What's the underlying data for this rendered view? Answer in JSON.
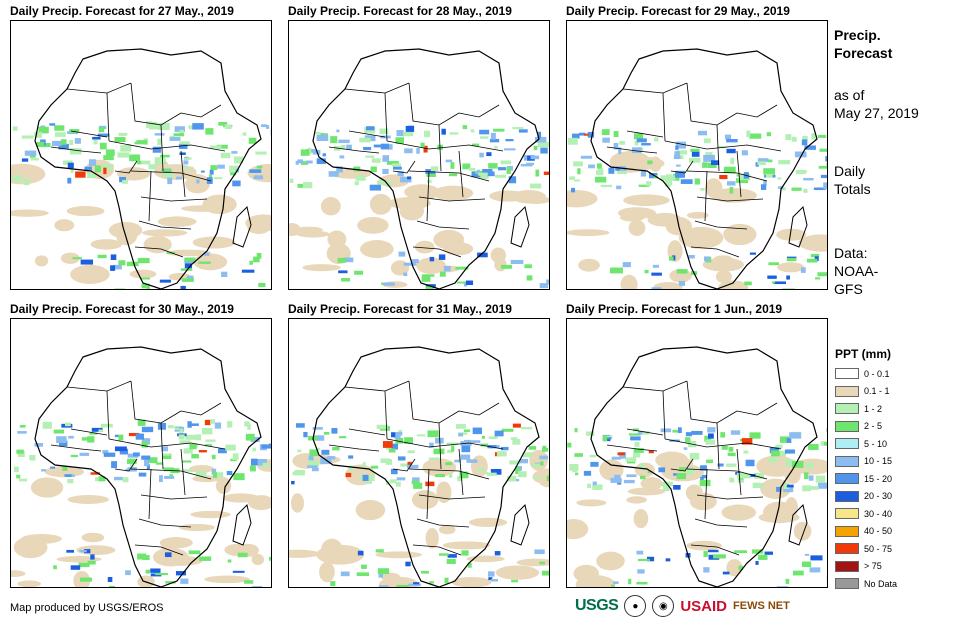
{
  "panels": [
    {
      "title": "Daily Precip. Forecast for 27 May., 2019"
    },
    {
      "title": "Daily Precip. Forecast for 28 May., 2019"
    },
    {
      "title": "Daily Precip. Forecast for 29 May., 2019"
    },
    {
      "title": "Daily Precip. Forecast for 30 May., 2019"
    },
    {
      "title": "Daily Precip. Forecast for 31 May., 2019"
    },
    {
      "title": "Daily Precip. Forecast for 1 Jun., 2019"
    }
  ],
  "sidebar": {
    "heading_line1": "Precip.",
    "heading_line2": "Forecast",
    "asof_line1": "as of",
    "asof_line2": "May 27, 2019",
    "totals_line1": "Daily",
    "totals_line2": "Totals",
    "data_line1": "Data:",
    "data_line2": "NOAA-",
    "data_line3": "GFS"
  },
  "legend": {
    "title": "PPT (mm)",
    "items": [
      {
        "label": "0 - 0.1",
        "color": "#ffffff"
      },
      {
        "label": "0.1 - 1",
        "color": "#e9d7b9"
      },
      {
        "label": "1 - 2",
        "color": "#b4f0b4"
      },
      {
        "label": "2 - 5",
        "color": "#6ee66e"
      },
      {
        "label": "5 - 10",
        "color": "#b0eef5"
      },
      {
        "label": "10 - 15",
        "color": "#8cbcf0"
      },
      {
        "label": "15 - 20",
        "color": "#4f95ec"
      },
      {
        "label": "20 - 30",
        "color": "#1b5fe0"
      },
      {
        "label": "30 - 40",
        "color": "#f8e68a"
      },
      {
        "label": "40 - 50",
        "color": "#f5a300"
      },
      {
        "label": "50 - 75",
        "color": "#f03a0a"
      },
      {
        "label": "> 75",
        "color": "#a01414"
      },
      {
        "label": "No Data",
        "color": "#999999"
      }
    ]
  },
  "credit": "Map produced by USGS/EROS",
  "logos": {
    "usgs": "USGS",
    "usaid": "USAID",
    "fews": "FEWS NET"
  }
}
